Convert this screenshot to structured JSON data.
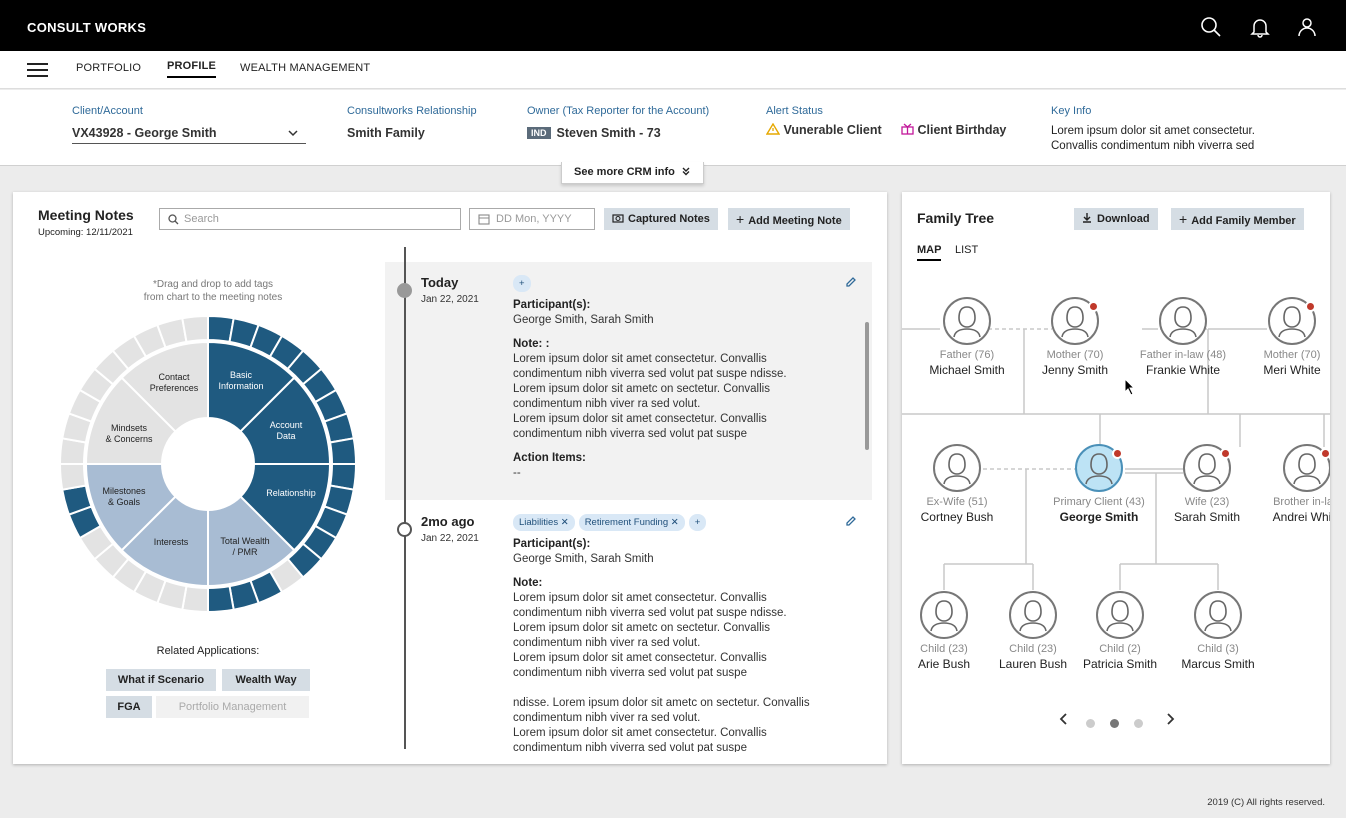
{
  "app": {
    "brand": "CONSULT WORKS"
  },
  "nav": {
    "items": [
      "PORTFOLIO",
      "PROFILE",
      "WEALTH MANAGEMENT"
    ]
  },
  "info": {
    "client_label": "Client/Account",
    "client_value": "VX43928 - George Smith",
    "relationship_label": "Consultworks Relationship",
    "relationship_value": "Smith Family",
    "owner_label": "Owner (Tax Reporter for the Account)",
    "owner_badge": "IND",
    "owner_value": "Steven Smith - 73",
    "alert_label": "Alert Status",
    "alert_1": "Vunerable Client",
    "alert_2": "Client Birthday",
    "keyinfo_label": "Key Info",
    "keyinfo_value": "Lorem ipsum dolor sit amet consectetur. Convallis condimentum nibh viverra sed",
    "crm_tab": "See more CRM info"
  },
  "meeting": {
    "title": "Meeting Notes",
    "upcoming": "Upcoming: 12/11/2021",
    "search_placeholder": "Search",
    "date_placeholder": "DD Mon, YYYY",
    "captured_btn": "Captured Notes",
    "add_btn": "Add Meeting Note",
    "drag_hint_1": "*Drag and drop to add tags",
    "drag_hint_2": "from chart to the meeting notes",
    "wheel": {
      "basic": [
        "Basic",
        "Information"
      ],
      "account": [
        "Account",
        "Data"
      ],
      "relationship": "Relationship",
      "total": [
        "Total Wealth",
        "/ PMR"
      ],
      "interests": "Interests",
      "milestones": [
        "Milestones",
        "& Goals"
      ],
      "mindsets": [
        "Mindsets",
        "& Concerns"
      ],
      "contact": [
        "Contact",
        "Preferences"
      ]
    },
    "related_label": "Related Applications:",
    "related": [
      "What if Scenario",
      "Wealth Way",
      "FGA",
      "Portfolio Management"
    ],
    "notes": [
      {
        "when": "Today",
        "date": "Jan 22, 2021",
        "tags": [],
        "participants_label": "Participant(s):",
        "participants": "George Smith, Sarah Smith",
        "note_label": "Note: :",
        "note_lines": [
          "Lorem ipsum dolor sit amet consectetur. Convallis",
          "condimentum nibh viverra sed volut pat suspe ndisse.",
          "Lorem ipsum dolor sit ametc on sectetur. Convallis",
          "condimentum nibh viver ra sed volut.",
          "Lorem ipsum dolor sit amet consectetur. Convallis",
          "condimentum nibh viverra sed volut pat suspe"
        ],
        "action_label": "Action Items:",
        "action_value": "--"
      },
      {
        "when": "2mo ago",
        "date": "Jan 22, 2021",
        "tags": [
          "Liabilities",
          "Retirement Funding"
        ],
        "participants_label": "Participant(s):",
        "participants": "George Smith, Sarah Smith",
        "note_label": "Note:",
        "note_lines": [
          "Lorem ipsum dolor sit amet consectetur. Convallis",
          "condimentum nibh viverra sed volut pat suspe ndisse.",
          "Lorem ipsum dolor sit ametc on sectetur. Convallis",
          "condimentum nibh viver ra sed volut.",
          "Lorem ipsum dolor sit amet consectetur. Convallis",
          "condimentum nibh viverra sed volut pat suspe",
          "",
          "ndisse. Lorem ipsum dolor sit ametc on sectetur. Convallis",
          "condimentum nibh viver ra sed volut.",
          "Lorem ipsum dolor sit amet consectetur. Convallis",
          "condimentum nibh viverra sed volut pat suspe"
        ]
      }
    ]
  },
  "family": {
    "title": "Family Tree",
    "download_btn": "Download",
    "add_btn": "Add Family Member",
    "tabs": [
      "MAP",
      "LIST"
    ],
    "row1": [
      {
        "role": "Father (76)",
        "name": "Michael Smith",
        "badge": false
      },
      {
        "role": "Mother (70)",
        "name": "Jenny Smith",
        "badge": true
      },
      {
        "role": "Father in-law (48)",
        "name": "Frankie White",
        "badge": false
      },
      {
        "role": "Mother (70)",
        "name": "Meri White",
        "badge": true
      }
    ],
    "row2": [
      {
        "role": "Ex-Wife (51)",
        "name": "Cortney Bush",
        "badge": false
      },
      {
        "role": "Primary Client (43)",
        "name": "George Smith",
        "badge": true,
        "primary": true
      },
      {
        "role": "Wife (23)",
        "name": "Sarah Smith",
        "badge": true
      },
      {
        "role": "Brother in-law",
        "name": "Andrei White",
        "badge": true
      }
    ],
    "row3": [
      {
        "role": "Child (23)",
        "name": "Arie Bush"
      },
      {
        "role": "Child (23)",
        "name": "Lauren Bush"
      },
      {
        "role": "Child (2)",
        "name": "Patricia Smith"
      },
      {
        "role": "Child (3)",
        "name": "Marcus Smith"
      }
    ],
    "pager": {
      "total": 3,
      "active": 1
    }
  },
  "footer": "2019 (C) All rights reserved.",
  "colors": {
    "dark_blue": "#1f5a80",
    "mid_blue": "#a8bcd3",
    "light_gray": "#e3e3e3",
    "accent": "#2f6a99",
    "alert_yellow": "#e6a800",
    "alert_pink": "#c2189a"
  }
}
